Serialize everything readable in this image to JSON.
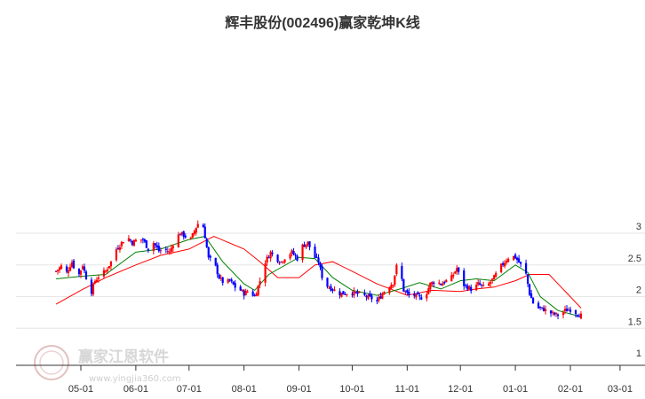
{
  "chart_data": {
    "type": "candlestick",
    "title": "辉丰股份(002496)赢家乾坤K线",
    "x_ticks": [
      "05-01",
      "06-01",
      "07-01",
      "08-01",
      "09-01",
      "10-01",
      "11-01",
      "12-01",
      "01-01",
      "02-01",
      "03-01"
    ],
    "y_ticks": [
      "1",
      "1.5",
      "2",
      "2.5",
      "3"
    ],
    "ylim": [
      1,
      3.35
    ],
    "grid": true,
    "up_color": "#ff0000",
    "down_color": "#0000ff",
    "flat_color": "#800080",
    "ma_short_color": "#008000",
    "ma_long_color": "#ff0000",
    "close_path": [
      [
        "04-17",
        2.4
      ],
      [
        "04-20",
        2.48
      ],
      [
        "04-23",
        2.38
      ],
      [
        "04-26",
        2.55
      ],
      [
        "04-28",
        2.4
      ],
      [
        "04-30",
        2.35
      ],
      [
        "05-02",
        2.5
      ],
      [
        "05-04",
        2.3
      ],
      [
        "05-07",
        2.08
      ],
      [
        "05-09",
        2.25
      ],
      [
        "05-12",
        2.35
      ],
      [
        "05-15",
        2.4
      ],
      [
        "05-18",
        2.55
      ],
      [
        "05-21",
        2.75
      ],
      [
        "05-24",
        2.85
      ],
      [
        "05-27",
        2.95
      ],
      [
        "05-30",
        2.85
      ],
      [
        "06-02",
        2.9
      ],
      [
        "06-05",
        2.9
      ],
      [
        "06-08",
        2.75
      ],
      [
        "06-11",
        2.85
      ],
      [
        "06-14",
        2.72
      ],
      [
        "06-17",
        2.75
      ],
      [
        "06-20",
        2.7
      ],
      [
        "06-23",
        2.9
      ],
      [
        "06-26",
        3.0
      ],
      [
        "06-29",
        2.95
      ],
      [
        "07-02",
        2.9
      ],
      [
        "07-05",
        3.1
      ],
      [
        "07-08",
        3.25
      ],
      [
        "07-10",
        2.95
      ],
      [
        "07-12",
        2.6
      ],
      [
        "07-15",
        2.55
      ],
      [
        "07-18",
        2.3
      ],
      [
        "07-21",
        2.2
      ],
      [
        "07-24",
        2.25
      ],
      [
        "07-27",
        2.15
      ],
      [
        "07-30",
        2.1
      ],
      [
        "08-01",
        2.05
      ],
      [
        "08-04",
        2.1
      ],
      [
        "08-07",
        2.0
      ],
      [
        "08-10",
        2.25
      ],
      [
        "08-13",
        2.55
      ],
      [
        "08-16",
        2.7
      ],
      [
        "08-19",
        2.6
      ],
      [
        "08-22",
        2.55
      ],
      [
        "08-25",
        2.65
      ],
      [
        "08-28",
        2.7
      ],
      [
        "08-31",
        2.6
      ],
      [
        "09-03",
        2.8
      ],
      [
        "09-06",
        2.85
      ],
      [
        "09-09",
        2.65
      ],
      [
        "09-12",
        2.55
      ],
      [
        "09-15",
        2.2
      ],
      [
        "09-18",
        2.15
      ],
      [
        "09-21",
        2.1
      ],
      [
        "09-24",
        2.05
      ],
      [
        "09-27",
        2.05
      ],
      [
        "09-30",
        2.07
      ],
      [
        "10-03",
        2.05
      ],
      [
        "10-06",
        2.03
      ],
      [
        "10-09",
        2.0
      ],
      [
        "10-12",
        1.97
      ],
      [
        "10-15",
        1.92
      ],
      [
        "10-18",
        2.05
      ],
      [
        "10-21",
        2.15
      ],
      [
        "10-24",
        2.22
      ],
      [
        "10-27",
        2.6
      ],
      [
        "10-30",
        2.1
      ],
      [
        "11-02",
        2.02
      ],
      [
        "11-05",
        2.02
      ],
      [
        "11-08",
        1.98
      ],
      [
        "11-11",
        2.0
      ],
      [
        "11-14",
        2.2
      ],
      [
        "11-17",
        2.25
      ],
      [
        "11-20",
        2.2
      ],
      [
        "11-23",
        2.25
      ],
      [
        "11-26",
        2.3
      ],
      [
        "11-29",
        2.45
      ],
      [
        "12-02",
        2.2
      ],
      [
        "12-05",
        2.15
      ],
      [
        "12-08",
        2.1
      ],
      [
        "12-11",
        2.2
      ],
      [
        "12-14",
        2.15
      ],
      [
        "12-17",
        2.2
      ],
      [
        "12-20",
        2.3
      ],
      [
        "12-23",
        2.45
      ],
      [
        "12-26",
        2.55
      ],
      [
        "12-29",
        2.65
      ],
      [
        "01-01",
        2.62
      ],
      [
        "01-04",
        2.5
      ],
      [
        "01-07",
        2.35
      ],
      [
        "01-09",
        2.05
      ],
      [
        "01-11",
        1.9
      ],
      [
        "01-14",
        1.82
      ],
      [
        "01-17",
        1.8
      ],
      [
        "01-20",
        1.75
      ],
      [
        "01-23",
        1.72
      ],
      [
        "01-26",
        1.7
      ],
      [
        "01-29",
        1.78
      ],
      [
        "02-01",
        1.8
      ],
      [
        "02-04",
        1.75
      ],
      [
        "02-07",
        1.7
      ]
    ],
    "ma_short": [
      [
        "04-17",
        2.28
      ],
      [
        "05-01",
        2.32
      ],
      [
        "05-15",
        2.35
      ],
      [
        "06-01",
        2.7
      ],
      [
        "06-15",
        2.75
      ],
      [
        "07-01",
        2.9
      ],
      [
        "07-10",
        2.95
      ],
      [
        "07-20",
        2.55
      ],
      [
        "08-01",
        2.2
      ],
      [
        "08-07",
        2.1
      ],
      [
        "08-15",
        2.35
      ],
      [
        "09-01",
        2.62
      ],
      [
        "09-10",
        2.6
      ],
      [
        "09-20",
        2.3
      ],
      [
        "10-01",
        2.1
      ],
      [
        "10-15",
        2.02
      ],
      [
        "10-28",
        2.12
      ],
      [
        "11-08",
        2.22
      ],
      [
        "11-20",
        2.12
      ],
      [
        "12-01",
        2.25
      ],
      [
        "12-10",
        2.28
      ],
      [
        "12-20",
        2.25
      ],
      [
        "01-01",
        2.5
      ],
      [
        "01-08",
        2.38
      ],
      [
        "01-15",
        2.0
      ],
      [
        "01-25",
        1.78
      ],
      [
        "02-07",
        1.68
      ]
    ],
    "ma_long": [
      [
        "04-17",
        1.88
      ],
      [
        "05-01",
        2.1
      ],
      [
        "05-15",
        2.3
      ],
      [
        "06-01",
        2.5
      ],
      [
        "06-15",
        2.65
      ],
      [
        "07-01",
        2.75
      ],
      [
        "07-15",
        2.95
      ],
      [
        "08-01",
        2.75
      ],
      [
        "08-10",
        2.55
      ],
      [
        "08-20",
        2.3
      ],
      [
        "09-01",
        2.3
      ],
      [
        "09-10",
        2.5
      ],
      [
        "09-20",
        2.55
      ],
      [
        "10-01",
        2.4
      ],
      [
        "10-15",
        2.2
      ],
      [
        "11-01",
        2.02
      ],
      [
        "11-15",
        2.1
      ],
      [
        "12-01",
        2.08
      ],
      [
        "12-10",
        2.12
      ],
      [
        "12-20",
        2.15
      ],
      [
        "01-01",
        2.25
      ],
      [
        "01-09",
        2.35
      ],
      [
        "01-20",
        2.35
      ],
      [
        "02-07",
        1.82
      ]
    ],
    "legend": {
      "visible": false
    }
  },
  "watermark": {
    "text": "赢家江恩软件",
    "url": "www.yingjia360.com"
  }
}
